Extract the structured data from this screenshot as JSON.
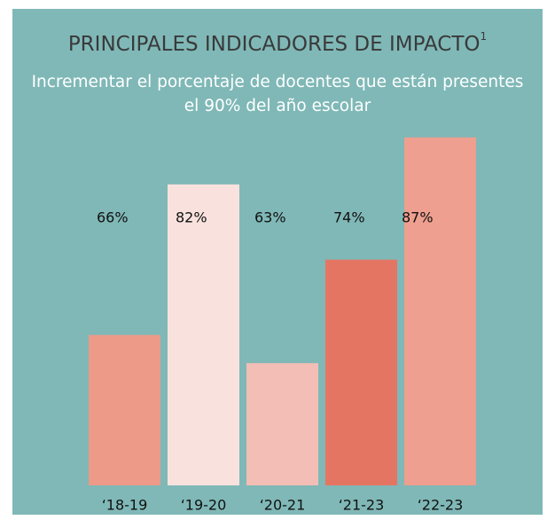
{
  "chart_data": {
    "type": "bar",
    "title": "PRINCIPALES INDICADORES DE IMPACTO",
    "title_superscript": "1",
    "subtitle": [
      "Incrementar el porcentaje de docentes que están presentes",
      "el 90% del año escolar"
    ],
    "categories": [
      "‘18-19",
      "‘19-20",
      "‘20-21",
      "‘21-23",
      "‘22-23"
    ],
    "values": [
      66,
      82,
      63,
      74,
      87
    ],
    "value_labels": [
      "66%",
      "82%",
      "63%",
      "74%",
      "87%"
    ],
    "colors": [
      "#ed9a89",
      "#f9e2dd",
      "#f2beb5",
      "#e57563",
      "#ee9f8f"
    ],
    "ylim": [
      50,
      90
    ]
  }
}
